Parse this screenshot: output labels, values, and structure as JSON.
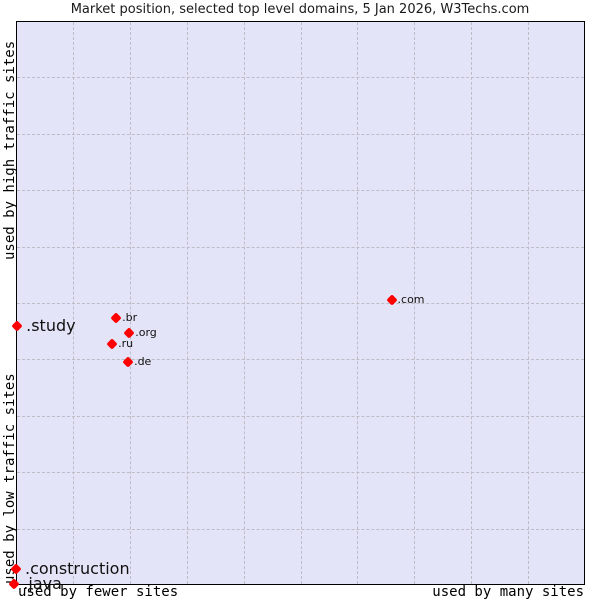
{
  "chart_data": {
    "type": "scatter",
    "title": "Market position, selected top level domains, 5 Jan 2026, W3Techs.com",
    "xlabel_left": "used by fewer sites",
    "xlabel_right": "used by many sites",
    "ylabel_top": "used by high traffic sites",
    "ylabel_bottom": "used by low traffic sites",
    "grid": true,
    "xlim": [
      0,
      10
    ],
    "ylim": [
      0,
      10
    ],
    "points": [
      {
        "name": ".com",
        "x": 6.6,
        "y": 5.05,
        "label_size": "small"
      },
      {
        "name": ".br",
        "x": 1.76,
        "y": 4.74,
        "label_size": "small"
      },
      {
        "name": ".org",
        "x": 1.99,
        "y": 4.47,
        "label_size": "small"
      },
      {
        "name": ".ru",
        "x": 1.69,
        "y": 4.28,
        "label_size": "small"
      },
      {
        "name": ".de",
        "x": 1.97,
        "y": 3.95,
        "label_size": "small"
      },
      {
        "name": ".study",
        "x": 0.02,
        "y": 4.59,
        "label_size": "big"
      },
      {
        "name": ".construction",
        "x": 0.0,
        "y": 0.28,
        "label_size": "big"
      },
      {
        "name": ".java",
        "x": -0.03,
        "y": 0.02,
        "label_size": "big"
      }
    ]
  },
  "colors": {
    "plot_background": "#e4e4f8",
    "marker": "#ff0000",
    "grid": "#bdbdc8"
  }
}
